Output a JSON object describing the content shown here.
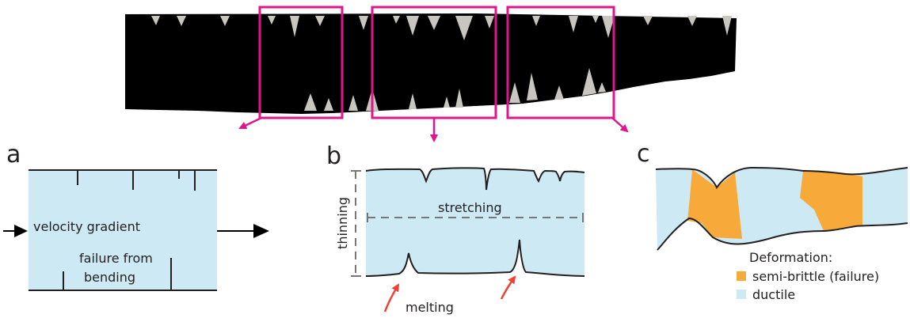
{
  "colors": {
    "ice_blue": "#cce9f4",
    "semi_brittle": "#f7a93a",
    "highlight": "#e0148c",
    "melt_arrow": "#ef4136",
    "ink": "#231f20",
    "crevasse_gray": "#c8c6bf",
    "dashed_gray": "#808080"
  },
  "panels": {
    "a": {
      "letter": "a",
      "labels": {
        "velocity_gradient": "velocity gradient",
        "failure_line1": "failure from",
        "failure_line2": "bending"
      }
    },
    "b": {
      "letter": "b",
      "labels": {
        "thinning": "thinning",
        "stretching": "stretching",
        "melting": "melting"
      }
    },
    "c": {
      "letter": "c",
      "legend": {
        "title": "Deformation:",
        "items": [
          {
            "label": "semi-brittle (failure)",
            "color": "#f7a93a"
          },
          {
            "label": "ductile",
            "color": "#cce9f4"
          }
        ]
      }
    }
  }
}
